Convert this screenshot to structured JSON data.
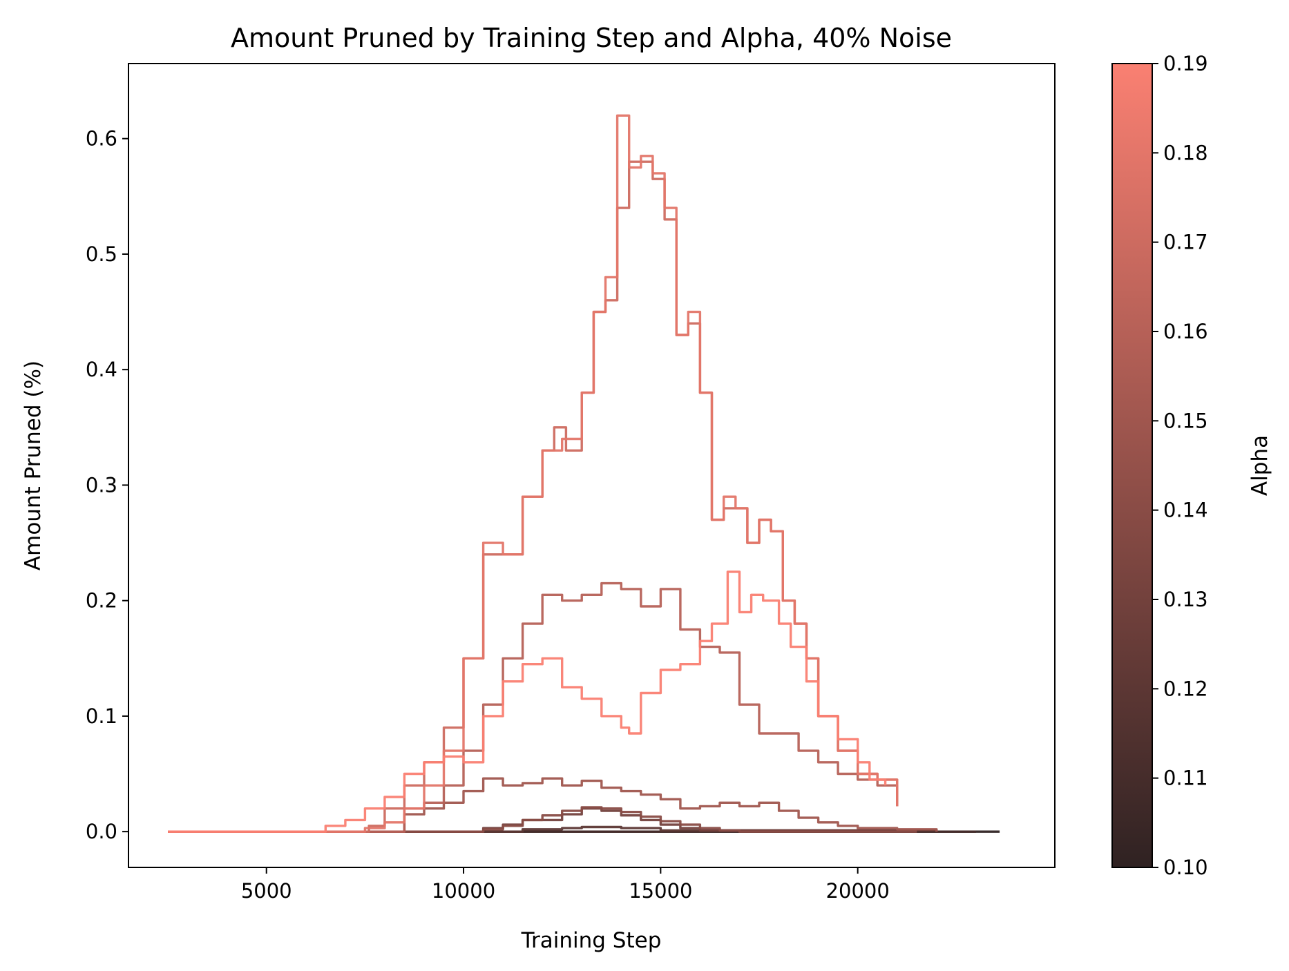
{
  "chart_data": {
    "type": "line",
    "title": "Amount Pruned by Training Step and Alpha, 40% Noise",
    "xlabel": "Training Step",
    "ylabel": "Amount Pruned (%)",
    "xlim": [
      1500,
      25000
    ],
    "ylim": [
      -0.031,
      0.665
    ],
    "xticks": [
      5000,
      10000,
      15000,
      20000
    ],
    "xtick_labels": [
      "5000",
      "10000",
      "15000",
      "20000"
    ],
    "yticks": [
      0.0,
      0.1,
      0.2,
      0.3,
      0.4,
      0.5,
      0.6
    ],
    "ytick_labels": [
      "0.0",
      "0.1",
      "0.2",
      "0.3",
      "0.4",
      "0.5",
      "0.6"
    ],
    "grid": false,
    "colorbar": {
      "label": "Alpha",
      "range": [
        0.1,
        0.19
      ],
      "ticks": [
        0.1,
        0.11,
        0.12,
        0.13,
        0.14,
        0.15,
        0.16,
        0.17,
        0.18,
        0.19
      ],
      "tick_labels": [
        "0.10",
        "0.11",
        "0.12",
        "0.13",
        "0.14",
        "0.15",
        "0.16",
        "0.17",
        "0.18",
        "0.19"
      ],
      "color_low": "#2f2222",
      "color_high": "#fa8072"
    },
    "series": [
      {
        "alpha": 0.1,
        "x": [
          2500,
          23600
        ],
        "y": [
          0.0,
          0.0
        ]
      },
      {
        "alpha": 0.11,
        "x": [
          2500,
          23000
        ],
        "y": [
          0.0,
          0.0
        ]
      },
      {
        "alpha": 0.12,
        "x": [
          2500,
          8000,
          10500,
          11500,
          12500,
          13000,
          14000,
          15000,
          22000
        ],
        "y": [
          0.0,
          0.0,
          0.0,
          0.002,
          0.003,
          0.004,
          0.003,
          0.001,
          0.0
        ]
      },
      {
        "alpha": 0.13,
        "x": [
          2500,
          9800,
          10500,
          11000,
          11500,
          12500,
          13000,
          13500,
          14000,
          14500,
          15000,
          15500,
          16000,
          21000
        ],
        "y": [
          0.0,
          0.0,
          0.003,
          0.006,
          0.01,
          0.015,
          0.02,
          0.018,
          0.014,
          0.01,
          0.006,
          0.003,
          0.001,
          0.0
        ]
      },
      {
        "alpha": 0.14,
        "x": [
          2500,
          10000,
          10500,
          11000,
          11500,
          12000,
          12500,
          13000,
          13500,
          14000,
          14500,
          15000,
          15500,
          16000,
          16500,
          17000,
          21500
        ],
        "y": [
          0.0,
          0.0,
          0.002,
          0.005,
          0.01,
          0.014,
          0.018,
          0.021,
          0.02,
          0.017,
          0.013,
          0.009,
          0.006,
          0.003,
          0.001,
          0.0,
          0.0
        ]
      },
      {
        "alpha": 0.15,
        "x": [
          2500,
          7800,
          8500,
          9000,
          9500,
          10000,
          10500,
          11000,
          11500,
          12000,
          12500,
          13000,
          13500,
          14000,
          14500,
          15000,
          15500,
          16000,
          16500,
          17000,
          17500,
          18000,
          18500,
          19000,
          19500,
          20000,
          21000,
          22000
        ],
        "y": [
          0.0,
          0.0,
          0.015,
          0.02,
          0.025,
          0.035,
          0.046,
          0.04,
          0.042,
          0.046,
          0.04,
          0.044,
          0.038,
          0.035,
          0.032,
          0.028,
          0.02,
          0.022,
          0.025,
          0.022,
          0.025,
          0.018,
          0.012,
          0.008,
          0.005,
          0.003,
          0.002,
          0.0
        ]
      },
      {
        "alpha": 0.16,
        "x": [
          2500,
          7800,
          8500,
          9000,
          9500,
          10000,
          10500,
          11000,
          11500,
          12000,
          12500,
          13000,
          13500,
          14000,
          14500,
          15000,
          15500,
          16000,
          16500,
          17000,
          17500,
          18000,
          18500,
          19000,
          19500,
          20000,
          20500,
          21000
        ],
        "y": [
          0.0,
          0.0,
          0.02,
          0.025,
          0.04,
          0.07,
          0.11,
          0.15,
          0.18,
          0.205,
          0.2,
          0.205,
          0.215,
          0.21,
          0.195,
          0.21,
          0.175,
          0.16,
          0.155,
          0.11,
          0.085,
          0.085,
          0.07,
          0.06,
          0.05,
          0.045,
          0.04,
          0.022
        ]
      },
      {
        "alpha": 0.17,
        "x": [
          2500,
          7000,
          7600,
          8000,
          8500,
          9000,
          9500,
          10000,
          10500,
          11000,
          11500,
          12000,
          12300,
          12600,
          13000,
          13300,
          13600,
          13900,
          14200,
          14500,
          14800,
          15100,
          15400,
          15700,
          16000,
          16300,
          16600,
          16900,
          17200,
          17500,
          17800,
          18100,
          18400,
          18700,
          19000,
          19500,
          20000,
          20500,
          21000
        ],
        "y": [
          0.0,
          0.0,
          0.005,
          0.02,
          0.04,
          0.06,
          0.09,
          0.15,
          0.24,
          0.24,
          0.29,
          0.33,
          0.35,
          0.33,
          0.38,
          0.45,
          0.46,
          0.54,
          0.58,
          0.58,
          0.565,
          0.53,
          0.43,
          0.44,
          0.38,
          0.27,
          0.28,
          0.28,
          0.25,
          0.27,
          0.26,
          0.2,
          0.18,
          0.15,
          0.1,
          0.07,
          0.05,
          0.045,
          0.022
        ]
      },
      {
        "alpha": 0.18,
        "x": [
          2500,
          7000,
          7500,
          8000,
          8500,
          9000,
          9500,
          10000,
          10500,
          11000,
          11500,
          12000,
          12500,
          13000,
          13300,
          13600,
          13900,
          14200,
          14500,
          14800,
          15100,
          15400,
          15700,
          16000,
          16300,
          16600,
          16900,
          17200,
          17500,
          17800,
          18100,
          18400,
          18700,
          19000,
          19500,
          20000,
          20500,
          21000
        ],
        "y": [
          0.0,
          0.0,
          0.003,
          0.008,
          0.02,
          0.04,
          0.07,
          0.15,
          0.25,
          0.24,
          0.29,
          0.33,
          0.34,
          0.38,
          0.45,
          0.48,
          0.62,
          0.575,
          0.585,
          0.57,
          0.54,
          0.43,
          0.45,
          0.38,
          0.27,
          0.29,
          0.28,
          0.25,
          0.27,
          0.26,
          0.2,
          0.18,
          0.15,
          0.1,
          0.07,
          0.05,
          0.045,
          0.022
        ]
      },
      {
        "alpha": 0.19,
        "x": [
          2500,
          6000,
          6500,
          7000,
          7500,
          8000,
          8500,
          9000,
          9500,
          10000,
          10500,
          11000,
          11500,
          12000,
          12500,
          13000,
          13500,
          14000,
          14200,
          14500,
          15000,
          15500,
          16000,
          16300,
          16700,
          17000,
          17300,
          17600,
          18000,
          18300,
          18700,
          19000,
          19500,
          20000,
          20300,
          20700
        ],
        "y": [
          0.0,
          0.0,
          0.005,
          0.01,
          0.02,
          0.03,
          0.05,
          0.06,
          0.065,
          0.06,
          0.1,
          0.13,
          0.145,
          0.15,
          0.125,
          0.115,
          0.1,
          0.09,
          0.085,
          0.12,
          0.14,
          0.145,
          0.165,
          0.18,
          0.225,
          0.19,
          0.205,
          0.2,
          0.18,
          0.16,
          0.13,
          0.1,
          0.08,
          0.06,
          0.045,
          0.04
        ]
      }
    ]
  }
}
